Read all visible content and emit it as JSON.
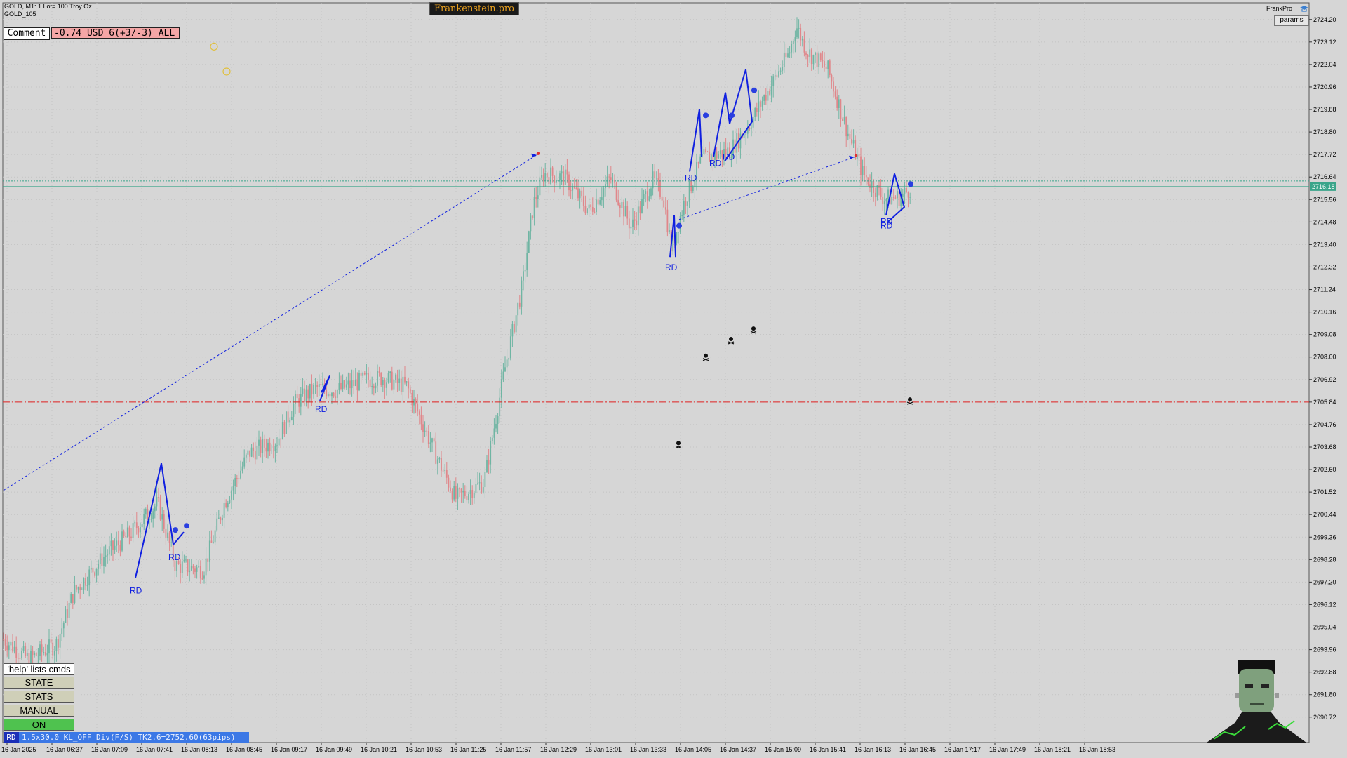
{
  "header": {
    "symbol_line": "GOLD, M1:  1 Lot= 100 Troy Oz",
    "symbol_sub": "GOLD_105",
    "brand_label": "Frankenstein.pro",
    "ea_name": "FrankPro",
    "params_button": "params"
  },
  "comment_box": {
    "label": "Comment",
    "value": "-0.74 USD 6(+3/-3) ALL"
  },
  "side_panel": {
    "help_text": "'help' lists cmds",
    "buttons": [
      "STATE",
      "STATS",
      "MANUAL",
      "ON"
    ]
  },
  "status_bar": {
    "tag": "RD",
    "text": "1.5x30.0 KL_OFF Div(F/S) TK2.6=2752.60(63pips)"
  },
  "colors": {
    "background": "#d6d6d6",
    "bull": "#6fb5a3",
    "bear": "#e0868a",
    "pattern": "#1020e0",
    "bid_line": "#3aa58a",
    "level_line": "#e02020",
    "on_button": "#4fc24f",
    "status_bar": "#3b78e6",
    "brand_bg": "#1a1a1a",
    "brand_text": "#e8a020"
  },
  "chart_data": {
    "type": "candlestick",
    "title": "GOLD, M1",
    "price_axis": {
      "min": 2689.5,
      "max": 2725.0,
      "ticks": [
        "2724.20",
        "2723.12",
        "2722.04",
        "2720.96",
        "2719.88",
        "2718.80",
        "2717.72",
        "2716.64",
        "2715.56",
        "2714.48",
        "2713.40",
        "2712.32",
        "2711.24",
        "2710.16",
        "2709.08",
        "2708.00",
        "2706.92",
        "2705.84",
        "2704.76",
        "2703.68",
        "2702.60",
        "2701.52",
        "2700.44",
        "2699.36",
        "2698.28",
        "2697.20",
        "2696.12",
        "2695.04",
        "2693.96",
        "2692.88",
        "2691.80",
        "2690.72"
      ]
    },
    "current_price": "2716.18",
    "bid_line_value": 2716.18,
    "ask_line_value": 2716.45,
    "horizontal_level": 2705.84,
    "time_labels": [
      "16 Jan 2025",
      "16 Jan 06:37",
      "16 Jan 07:09",
      "16 Jan 07:41",
      "16 Jan 08:13",
      "16 Jan 08:45",
      "16 Jan 09:17",
      "16 Jan 09:49",
      "16 Jan 10:21",
      "16 Jan 10:53",
      "16 Jan 11:25",
      "16 Jan 11:57",
      "16 Jan 12:29",
      "16 Jan 13:01",
      "16 Jan 13:33",
      "16 Jan 14:05",
      "16 Jan 14:37",
      "16 Jan 15:09",
      "16 Jan 15:41",
      "16 Jan 16:13",
      "16 Jan 16:45",
      "16 Jan 17:17",
      "16 Jan 17:49",
      "16 Jan 18:21",
      "16 Jan 18:53"
    ],
    "path_anchors": [
      [
        0,
        2694.6
      ],
      [
        40,
        2693.5
      ],
      [
        80,
        2694.2
      ],
      [
        105,
        2696.7
      ],
      [
        150,
        2698.5
      ],
      [
        185,
        2699.5
      ],
      [
        225,
        2701.0
      ],
      [
        250,
        2698.0
      ],
      [
        290,
        2697.8
      ],
      [
        320,
        2701.0
      ],
      [
        355,
        2703.4
      ],
      [
        395,
        2704.0
      ],
      [
        420,
        2705.8
      ],
      [
        450,
        2706.5
      ],
      [
        480,
        2706.4
      ],
      [
        520,
        2706.9
      ],
      [
        545,
        2707.0
      ],
      [
        580,
        2706.6
      ],
      [
        620,
        2703.4
      ],
      [
        650,
        2701.2
      ],
      [
        690,
        2702.0
      ],
      [
        720,
        2707.5
      ],
      [
        745,
        2711.5
      ],
      [
        760,
        2715.3
      ],
      [
        775,
        2716.8
      ],
      [
        805,
        2716.6
      ],
      [
        840,
        2715.0
      ],
      [
        870,
        2716.6
      ],
      [
        900,
        2714.2
      ],
      [
        930,
        2716.5
      ],
      [
        945,
        2715.8
      ],
      [
        957,
        2713.2
      ],
      [
        975,
        2715.4
      ],
      [
        1000,
        2717.5
      ],
      [
        1040,
        2717.9
      ],
      [
        1065,
        2719.0
      ],
      [
        1100,
        2721.1
      ],
      [
        1125,
        2722.6
      ],
      [
        1135,
        2723.9
      ],
      [
        1150,
        2722.7
      ],
      [
        1180,
        2721.8
      ],
      [
        1210,
        2718.6
      ],
      [
        1230,
        2716.8
      ],
      [
        1260,
        2715.6
      ],
      [
        1285,
        2715.7
      ],
      [
        1300,
        2716.2
      ]
    ],
    "patterns": [
      {
        "label": "RD",
        "points": [
          [
            193,
            2697.4
          ],
          [
            230,
            2702.9
          ],
          [
            247,
            2699.0
          ],
          [
            262,
            2699.6
          ]
        ]
      },
      {
        "label": "RD",
        "points": [
          [
            456,
            2705.9
          ],
          [
            470,
            2707.1
          ],
          [
            458,
            2706.3
          ]
        ]
      },
      {
        "label": "RD",
        "points": [
          [
            955,
            2712.8
          ],
          [
            961,
            2714.8
          ],
          [
            963,
            2712.8
          ]
        ]
      },
      {
        "label": "RD",
        "points": [
          [
            983,
            2716.9
          ],
          [
            997,
            2719.9
          ],
          [
            1000,
            2717.6
          ]
        ]
      },
      {
        "label": "RD",
        "points": [
          [
            1017,
            2717.6
          ],
          [
            1034,
            2720.7
          ],
          [
            1040,
            2719.2
          ],
          [
            1063,
            2721.8
          ],
          [
            1072,
            2719.3
          ],
          [
            1033,
            2717.4
          ]
        ]
      },
      {
        "label": "RD",
        "points": [
          [
            1263,
            2714.8
          ],
          [
            1275,
            2716.8
          ],
          [
            1289,
            2715.2
          ],
          [
            1266,
            2714.5
          ]
        ]
      }
    ],
    "rd_label_positions": [
      [
        193,
        2696.8
      ],
      [
        248,
        2698.4
      ],
      [
        457,
        2705.5
      ],
      [
        956,
        2712.3
      ],
      [
        984,
        2716.6
      ],
      [
        1019,
        2717.3
      ],
      [
        1038,
        2717.6
      ],
      [
        1263,
        2714.5
      ],
      [
        1263,
        2714.3
      ]
    ],
    "dotted_links": [
      {
        "from": [
          5,
          2701.6
        ],
        "to": [
          765,
          2717.7
        ]
      },
      {
        "from": [
          968,
          2714.6
        ],
        "to": [
          1218,
          2717.6
        ]
      }
    ],
    "skull_markers": [
      [
        967,
        2703.8
      ],
      [
        1006,
        2708.0
      ],
      [
        1042,
        2708.8
      ],
      [
        1074,
        2709.3
      ],
      [
        1297,
        2705.9
      ]
    ],
    "info_markers": [
      [
        266,
        2699.9
      ],
      [
        250,
        2699.7
      ],
      [
        1006,
        2719.6
      ],
      [
        1043,
        2719.6
      ],
      [
        1075,
        2720.8
      ],
      [
        1298,
        2716.3
      ],
      [
        968,
        2714.3
      ]
    ]
  }
}
